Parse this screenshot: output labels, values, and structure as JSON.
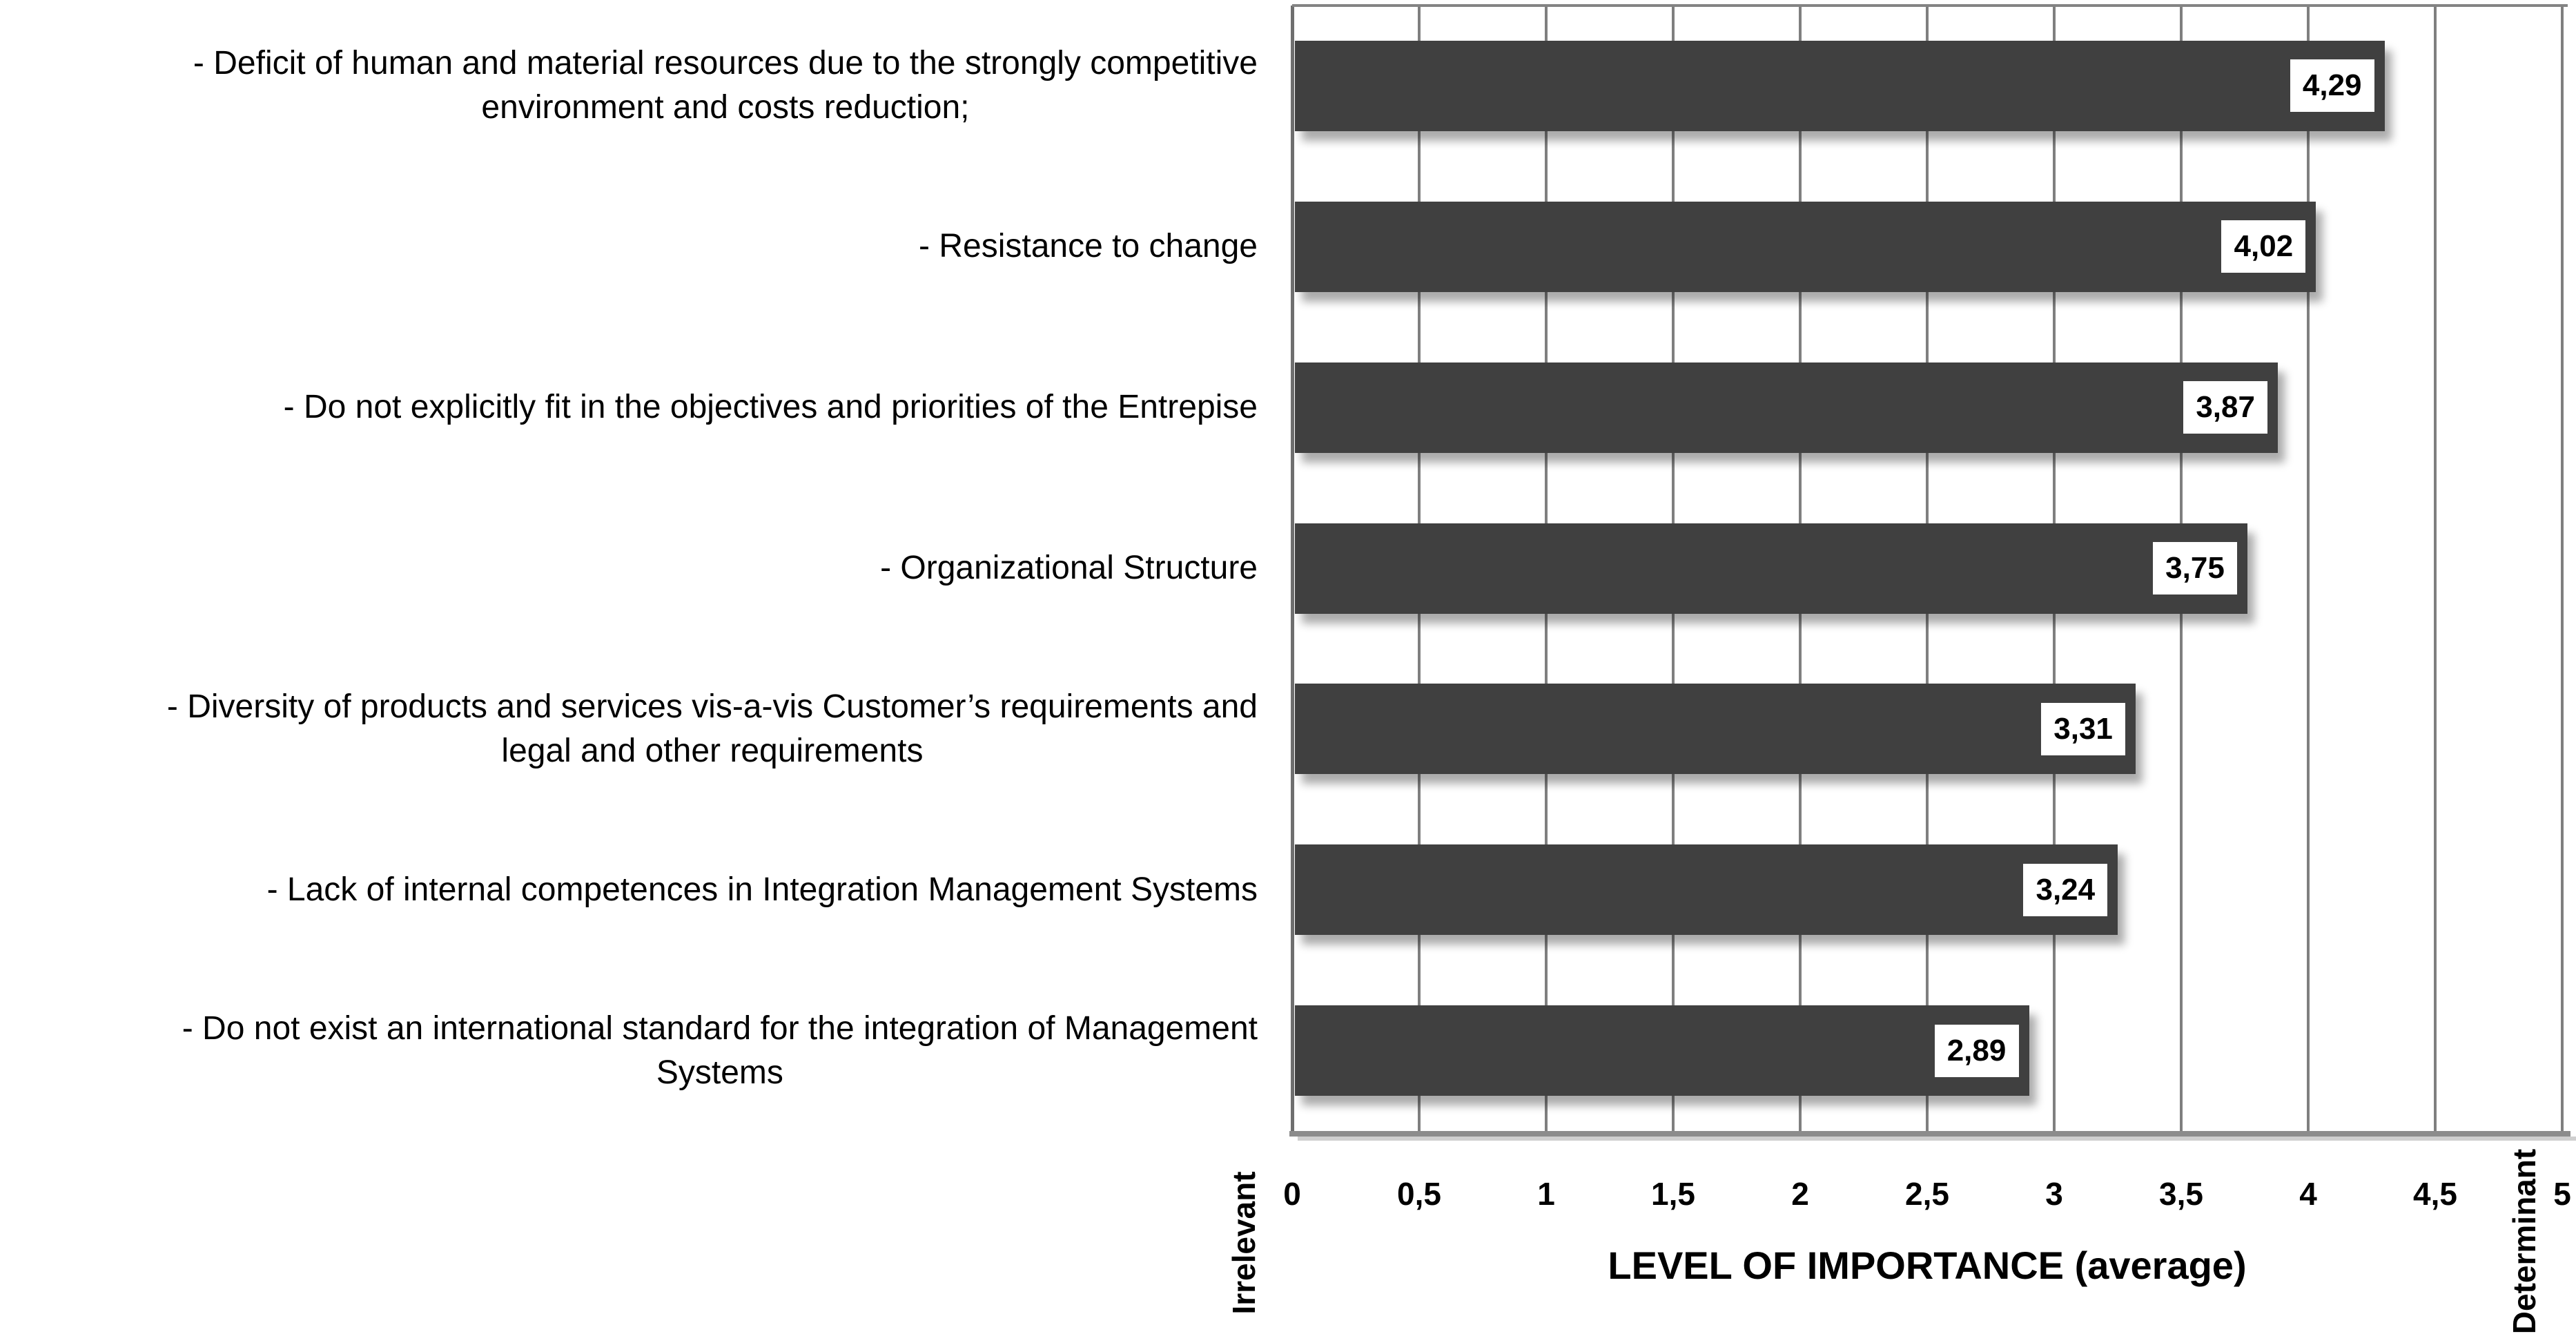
{
  "chart_data": {
    "type": "bar",
    "orientation": "horizontal",
    "title": "",
    "xlabel": "LEVEL OF IMPORTANCE (average)",
    "ylabel": "",
    "xlim": [
      0,
      5
    ],
    "grid": "vertical-gridlines-every-0.5",
    "legend": "none",
    "axis_min_annotation": "Irrelevant",
    "axis_max_annotation": "Determinant",
    "x_ticks": [
      {
        "value": 0,
        "label": "0"
      },
      {
        "value": 0.5,
        "label": "0,5"
      },
      {
        "value": 1,
        "label": "1"
      },
      {
        "value": 1.5,
        "label": "1,5"
      },
      {
        "value": 2,
        "label": "2"
      },
      {
        "value": 2.5,
        "label": "2,5"
      },
      {
        "value": 3,
        "label": "3"
      },
      {
        "value": 3.5,
        "label": "3,5"
      },
      {
        "value": 4,
        "label": "4"
      },
      {
        "value": 4.5,
        "label": "4,5"
      },
      {
        "value": 5,
        "label": "5"
      }
    ],
    "series": [
      {
        "name": "Level of importance (average)",
        "points": [
          {
            "category": "- Deficit of human and material resources due to the strongly competitive environment and costs reduction;",
            "category_lines": [
              "- Deficit of human and material resources due to the strongly competitive",
              "environment and costs reduction;"
            ],
            "value": 4.29,
            "value_label": "4,29"
          },
          {
            "category": "- Resistance to change",
            "category_lines": [
              "- Resistance to change"
            ],
            "value": 4.02,
            "value_label": "4,02"
          },
          {
            "category": "- Do not explicitly fit in the objectives and priorities of the Entrepise",
            "category_lines": [
              "- Do not explicitly fit in the objectives and priorities of the Entrepise"
            ],
            "value": 3.87,
            "value_label": "3,87"
          },
          {
            "category": "- Organizational Structure",
            "category_lines": [
              "- Organizational Structure"
            ],
            "value": 3.75,
            "value_label": "3,75"
          },
          {
            "category": "- Diversity of products and services vis-a-vis Customer’s requirements and legal and other requirements",
            "category_lines": [
              "- Diversity of products and services vis-a-vis Customer’s requirements and",
              "legal and other requirements"
            ],
            "value": 3.31,
            "value_label": "3,31"
          },
          {
            "category": "- Lack of internal competences in Integration Management Systems",
            "category_lines": [
              "- Lack of internal competences in Integration Management Systems"
            ],
            "value": 3.24,
            "value_label": "3,24"
          },
          {
            "category": "- Do not exist an international standard for the integration of Management Systems",
            "category_lines": [
              "- Do not exist an international standard for the integration of Management",
              "Systems"
            ],
            "value": 2.89,
            "value_label": "2,89"
          }
        ]
      }
    ]
  },
  "colors": {
    "bar_fill": "#404040",
    "gridline": "#7f7f7f",
    "axis_line": "#8c8c8c",
    "axis_line_shadow": "#cfcfcf",
    "value_box_background": "#ffffff",
    "text": "#000000",
    "background": "#ffffff"
  }
}
